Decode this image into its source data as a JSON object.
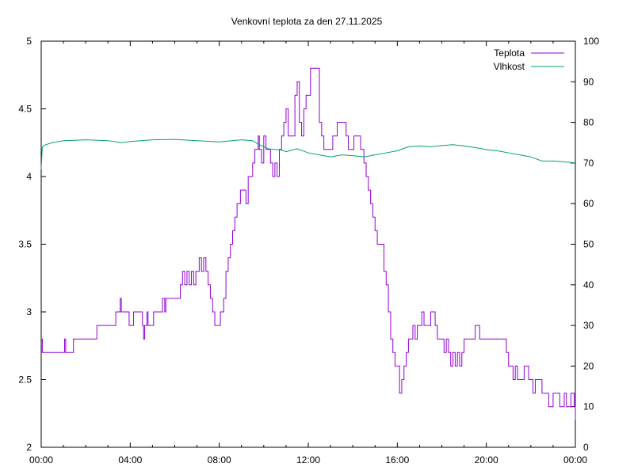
{
  "chart_data": {
    "type": "line",
    "title": "Venkovní teplota za den 27.11.2025",
    "xlabel": "",
    "ylabel": "",
    "y2label": "",
    "x_unit": "hours",
    "xlim": [
      0,
      24
    ],
    "ylim": [
      2,
      5
    ],
    "y2lim": [
      0,
      100
    ],
    "x_ticks": [
      {
        "x": 0,
        "label": "00:00"
      },
      {
        "x": 4,
        "label": "04:00"
      },
      {
        "x": 8,
        "label": "08:00"
      },
      {
        "x": 12,
        "label": "12:00"
      },
      {
        "x": 16,
        "label": "16:00"
      },
      {
        "x": 20,
        "label": "20:00"
      },
      {
        "x": 24,
        "label": "00:00"
      }
    ],
    "y_ticks": [
      {
        "v": 2,
        "label": "2"
      },
      {
        "v": 2.5,
        "label": "2.5"
      },
      {
        "v": 3,
        "label": "3"
      },
      {
        "v": 3.5,
        "label": "3.5"
      },
      {
        "v": 4,
        "label": "4"
      },
      {
        "v": 4.5,
        "label": "4.5"
      },
      {
        "v": 5,
        "label": "5"
      }
    ],
    "y2_ticks": [
      {
        "v": 0,
        "label": "0"
      },
      {
        "v": 10,
        "label": "10"
      },
      {
        "v": 20,
        "label": "20"
      },
      {
        "v": 30,
        "label": "30"
      },
      {
        "v": 40,
        "label": "40"
      },
      {
        "v": 50,
        "label": "50"
      },
      {
        "v": 60,
        "label": "60"
      },
      {
        "v": 70,
        "label": "70"
      },
      {
        "v": 80,
        "label": "80"
      },
      {
        "v": 90,
        "label": "90"
      },
      {
        "v": 100,
        "label": "100"
      }
    ],
    "grid": false,
    "legend": "top-right",
    "series": [
      {
        "name": "Teplota",
        "axis": "left",
        "color": "#9400d3",
        "step": true,
        "points": [
          [
            0.0,
            2.8
          ],
          [
            0.05,
            2.7
          ],
          [
            1.0,
            2.7
          ],
          [
            1.05,
            2.8
          ],
          [
            1.1,
            2.7
          ],
          [
            1.4,
            2.7
          ],
          [
            1.45,
            2.8
          ],
          [
            2.5,
            2.8
          ],
          [
            2.5,
            2.9
          ],
          [
            3.3,
            2.9
          ],
          [
            3.35,
            3.0
          ],
          [
            3.5,
            3.0
          ],
          [
            3.55,
            3.1
          ],
          [
            3.6,
            3.0
          ],
          [
            3.9,
            3.0
          ],
          [
            3.95,
            2.9
          ],
          [
            4.1,
            2.9
          ],
          [
            4.15,
            3.0
          ],
          [
            4.5,
            3.0
          ],
          [
            4.55,
            2.9
          ],
          [
            4.6,
            2.8
          ],
          [
            4.65,
            2.9
          ],
          [
            4.75,
            3.0
          ],
          [
            4.8,
            2.9
          ],
          [
            5.0,
            2.9
          ],
          [
            5.05,
            3.0
          ],
          [
            5.4,
            3.0
          ],
          [
            5.45,
            3.1
          ],
          [
            5.55,
            3.0
          ],
          [
            5.6,
            3.1
          ],
          [
            6.2,
            3.1
          ],
          [
            6.25,
            3.2
          ],
          [
            6.35,
            3.3
          ],
          [
            6.45,
            3.2
          ],
          [
            6.55,
            3.3
          ],
          [
            6.65,
            3.2
          ],
          [
            6.75,
            3.3
          ],
          [
            6.85,
            3.2
          ],
          [
            6.95,
            3.3
          ],
          [
            7.05,
            3.3
          ],
          [
            7.1,
            3.4
          ],
          [
            7.2,
            3.3
          ],
          [
            7.3,
            3.4
          ],
          [
            7.4,
            3.3
          ],
          [
            7.5,
            3.2
          ],
          [
            7.6,
            3.1
          ],
          [
            7.7,
            3.0
          ],
          [
            7.8,
            2.9
          ],
          [
            8.0,
            2.9
          ],
          [
            8.05,
            3.0
          ],
          [
            8.2,
            3.1
          ],
          [
            8.3,
            3.3
          ],
          [
            8.4,
            3.4
          ],
          [
            8.5,
            3.5
          ],
          [
            8.6,
            3.6
          ],
          [
            8.7,
            3.7
          ],
          [
            8.8,
            3.8
          ],
          [
            8.95,
            3.9
          ],
          [
            9.15,
            3.9
          ],
          [
            9.2,
            3.8
          ],
          [
            9.3,
            4.0
          ],
          [
            9.5,
            4.1
          ],
          [
            9.6,
            4.2
          ],
          [
            9.75,
            4.3
          ],
          [
            9.8,
            4.2
          ],
          [
            9.9,
            4.1
          ],
          [
            10.0,
            4.3
          ],
          [
            10.1,
            4.2
          ],
          [
            10.3,
            4.1
          ],
          [
            10.4,
            4.0
          ],
          [
            10.5,
            4.1
          ],
          [
            10.6,
            4.0
          ],
          [
            10.7,
            4.2
          ],
          [
            10.8,
            4.3
          ],
          [
            10.9,
            4.4
          ],
          [
            11.0,
            4.5
          ],
          [
            11.1,
            4.3
          ],
          [
            11.3,
            4.3
          ],
          [
            11.4,
            4.6
          ],
          [
            11.5,
            4.7
          ],
          [
            11.6,
            4.4
          ],
          [
            11.7,
            4.3
          ],
          [
            11.8,
            4.5
          ],
          [
            11.9,
            4.6
          ],
          [
            12.1,
            4.8
          ],
          [
            12.4,
            4.8
          ],
          [
            12.5,
            4.4
          ],
          [
            12.6,
            4.3
          ],
          [
            12.7,
            4.2
          ],
          [
            12.8,
            4.2
          ],
          [
            13.0,
            4.2
          ],
          [
            13.1,
            4.3
          ],
          [
            13.3,
            4.4
          ],
          [
            13.6,
            4.4
          ],
          [
            13.7,
            4.3
          ],
          [
            13.8,
            4.2
          ],
          [
            14.0,
            4.2
          ],
          [
            14.05,
            4.3
          ],
          [
            14.3,
            4.3
          ],
          [
            14.35,
            4.2
          ],
          [
            14.5,
            4.1
          ],
          [
            14.6,
            4.0
          ],
          [
            14.7,
            3.9
          ],
          [
            14.8,
            3.8
          ],
          [
            14.9,
            3.7
          ],
          [
            15.0,
            3.6
          ],
          [
            15.1,
            3.5
          ],
          [
            15.3,
            3.5
          ],
          [
            15.4,
            3.3
          ],
          [
            15.5,
            3.2
          ],
          [
            15.6,
            3.0
          ],
          [
            15.7,
            2.8
          ],
          [
            15.8,
            2.7
          ],
          [
            15.9,
            2.6
          ],
          [
            16.1,
            2.4
          ],
          [
            16.2,
            2.5
          ],
          [
            16.3,
            2.6
          ],
          [
            16.4,
            2.7
          ],
          [
            16.5,
            2.8
          ],
          [
            16.7,
            2.9
          ],
          [
            16.8,
            2.8
          ],
          [
            16.9,
            2.9
          ],
          [
            17.0,
            2.9
          ],
          [
            17.1,
            3.0
          ],
          [
            17.2,
            2.9
          ],
          [
            17.4,
            2.9
          ],
          [
            17.5,
            3.0
          ],
          [
            17.7,
            2.9
          ],
          [
            17.8,
            2.8
          ],
          [
            18.0,
            2.8
          ],
          [
            18.1,
            2.7
          ],
          [
            18.2,
            2.8
          ],
          [
            18.3,
            2.7
          ],
          [
            18.4,
            2.6
          ],
          [
            18.5,
            2.7
          ],
          [
            18.6,
            2.6
          ],
          [
            18.7,
            2.7
          ],
          [
            18.8,
            2.6
          ],
          [
            18.9,
            2.7
          ],
          [
            19.0,
            2.8
          ],
          [
            19.4,
            2.8
          ],
          [
            19.5,
            2.9
          ],
          [
            19.7,
            2.8
          ],
          [
            20.0,
            2.8
          ],
          [
            20.8,
            2.8
          ],
          [
            20.9,
            2.7
          ],
          [
            21.0,
            2.6
          ],
          [
            21.2,
            2.5
          ],
          [
            21.3,
            2.6
          ],
          [
            21.4,
            2.5
          ],
          [
            21.6,
            2.5
          ],
          [
            21.7,
            2.6
          ],
          [
            21.9,
            2.5
          ],
          [
            22.1,
            2.4
          ],
          [
            22.2,
            2.5
          ],
          [
            22.5,
            2.4
          ],
          [
            22.8,
            2.3
          ],
          [
            23.0,
            2.4
          ],
          [
            23.3,
            2.3
          ],
          [
            23.5,
            2.4
          ],
          [
            23.6,
            2.3
          ],
          [
            23.8,
            2.4
          ],
          [
            23.95,
            2.3
          ],
          [
            24.0,
            2.2
          ]
        ]
      },
      {
        "name": "Vlhkost",
        "axis": "right",
        "color": "#009e73",
        "step": false,
        "points": [
          [
            0.0,
            68.5
          ],
          [
            0.05,
            74.0
          ],
          [
            0.2,
            74.5
          ],
          [
            0.5,
            75.0
          ],
          [
            1.0,
            75.5
          ],
          [
            2.0,
            75.7
          ],
          [
            3.0,
            75.5
          ],
          [
            3.6,
            75.0
          ],
          [
            4.0,
            75.3
          ],
          [
            5.0,
            75.7
          ],
          [
            6.0,
            75.8
          ],
          [
            7.0,
            75.5
          ],
          [
            8.0,
            75.2
          ],
          [
            9.0,
            75.7
          ],
          [
            9.5,
            75.5
          ],
          [
            9.8,
            74.5
          ],
          [
            10.2,
            73.5
          ],
          [
            10.8,
            73.2
          ],
          [
            11.0,
            72.8
          ],
          [
            11.5,
            73.5
          ],
          [
            12.0,
            72.5
          ],
          [
            12.5,
            72.0
          ],
          [
            13.0,
            71.5
          ],
          [
            13.5,
            72.0
          ],
          [
            14.0,
            71.8
          ],
          [
            14.5,
            71.5
          ],
          [
            15.0,
            72.0
          ],
          [
            15.5,
            72.5
          ],
          [
            16.0,
            73.0
          ],
          [
            16.5,
            74.0
          ],
          [
            17.0,
            74.2
          ],
          [
            17.5,
            74.0
          ],
          [
            18.0,
            74.3
          ],
          [
            18.5,
            74.5
          ],
          [
            19.0,
            74.2
          ],
          [
            19.5,
            73.8
          ],
          [
            20.0,
            73.3
          ],
          [
            20.5,
            73.0
          ],
          [
            21.0,
            72.5
          ],
          [
            21.5,
            72.0
          ],
          [
            22.0,
            71.5
          ],
          [
            22.5,
            70.5
          ],
          [
            23.0,
            70.5
          ],
          [
            23.5,
            70.3
          ],
          [
            24.0,
            70.0
          ]
        ]
      }
    ]
  }
}
